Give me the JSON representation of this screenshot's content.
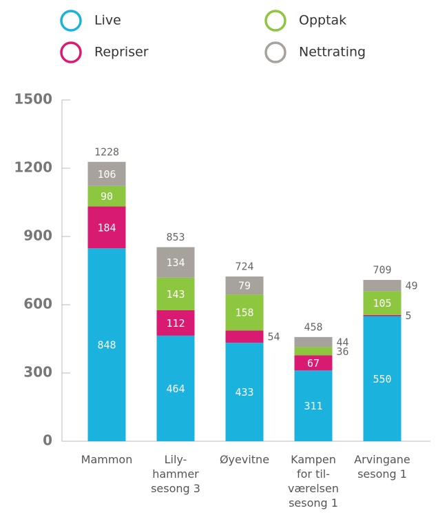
{
  "chart_data": {
    "type": "stacked_bar",
    "categories": [
      [
        "Mammon"
      ],
      [
        "Lily-",
        "hammer",
        "sesong 3"
      ],
      [
        "Øyevitne"
      ],
      [
        "Kampen",
        "for til-",
        "værelsen",
        "sesong 1"
      ],
      [
        "Arvingane",
        "sesong 1"
      ]
    ],
    "series": [
      {
        "name": "Live",
        "color": "#1bb3dd",
        "values": [
          848,
          464,
          433,
          311,
          550
        ]
      },
      {
        "name": "Repriser",
        "color": "#d91a73",
        "values": [
          184,
          112,
          54,
          67,
          5
        ]
      },
      {
        "name": "Opptak",
        "color": "#8dc63f",
        "values": [
          90,
          143,
          158,
          36,
          105
        ]
      },
      {
        "name": "Nettrating",
        "color": "#a8a29d",
        "values": [
          106,
          134,
          79,
          44,
          49
        ]
      }
    ],
    "totals": [
      1228,
      853,
      724,
      458,
      709
    ],
    "ylim": [
      0,
      1500
    ],
    "yticks": [
      0,
      300,
      600,
      900,
      1200,
      1500
    ]
  }
}
